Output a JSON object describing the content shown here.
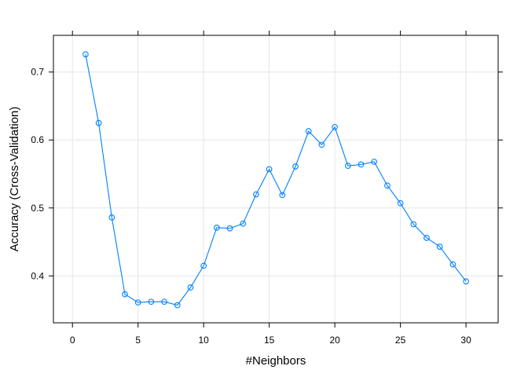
{
  "chart_data": {
    "type": "line",
    "xlabel": "#Neighbors",
    "ylabel": "Accuracy (Cross-Validation)",
    "xlim": [
      -1.45,
      32.45
    ],
    "ylim": [
      0.331,
      0.754
    ],
    "xticks": [
      0,
      5,
      10,
      15,
      20,
      25,
      30
    ],
    "yticks": [
      0.4,
      0.5,
      0.6,
      0.7
    ],
    "ytick_labels": [
      "0.4",
      "0.5",
      "0.6",
      "0.7"
    ],
    "grid": true,
    "markers": "open-circle",
    "colors": {
      "series": "#0080ff",
      "grid": "#e6e6e6",
      "frame": "#000000"
    },
    "series": [
      {
        "x": [
          1,
          2,
          3,
          4,
          5,
          6,
          7,
          8,
          9,
          10,
          11,
          12,
          13,
          14,
          15,
          16,
          17,
          18,
          19,
          20,
          21,
          22,
          23,
          24,
          25,
          26,
          27,
          28,
          29,
          30
        ],
        "values": [
          0.726,
          0.625,
          0.486,
          0.373,
          0.361,
          0.362,
          0.362,
          0.357,
          0.383,
          0.415,
          0.471,
          0.47,
          0.477,
          0.52,
          0.557,
          0.519,
          0.561,
          0.613,
          0.593,
          0.619,
          0.562,
          0.564,
          0.568,
          0.533,
          0.507,
          0.476,
          0.456,
          0.443,
          0.417,
          0.392
        ]
      }
    ]
  }
}
